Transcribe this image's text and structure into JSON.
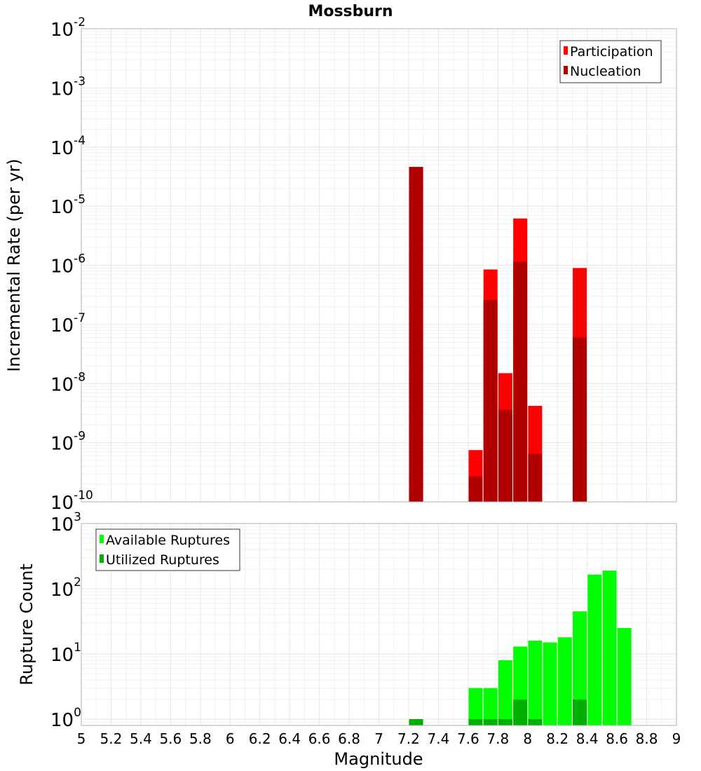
{
  "title": "Mossburn",
  "chart_data": [
    {
      "type": "bar",
      "panel": "top",
      "title": "Mossburn",
      "xlabel": "",
      "ylabel": "Incremental Rate (per yr)",
      "yscale": "log",
      "ylim": [
        1e-10,
        0.01
      ],
      "xlim": [
        5,
        9
      ],
      "grid": true,
      "legend_position": "top-right",
      "legend": [
        "Participation",
        "Nucleation"
      ],
      "y_ticks": [
        {
          "base": "10",
          "exp": "-2",
          "value": 0.01
        },
        {
          "base": "10",
          "exp": "-3",
          "value": 0.001
        },
        {
          "base": "10",
          "exp": "-4",
          "value": 0.0001
        },
        {
          "base": "10",
          "exp": "-5",
          "value": 1e-05
        },
        {
          "base": "10",
          "exp": "-6",
          "value": 1e-06
        },
        {
          "base": "10",
          "exp": "-7",
          "value": 1e-07
        },
        {
          "base": "10",
          "exp": "-8",
          "value": 1e-08
        },
        {
          "base": "10",
          "exp": "-9",
          "value": 1e-09
        },
        {
          "base": "10",
          "exp": "-10",
          "value": 1e-10
        }
      ],
      "series": [
        {
          "name": "Participation",
          "color": "#ff0000",
          "points": [
            {
              "x": 7.25,
              "y": 4.6e-05
            },
            {
              "x": 7.65,
              "y": 7.5e-10
            },
            {
              "x": 7.75,
              "y": 8.5e-07
            },
            {
              "x": 7.85,
              "y": 1.5e-08
            },
            {
              "x": 7.95,
              "y": 6.2e-06
            },
            {
              "x": 8.05,
              "y": 4.2e-09
            },
            {
              "x": 8.35,
              "y": 9e-07
            }
          ]
        },
        {
          "name": "Nucleation",
          "color": "#b00000",
          "points": [
            {
              "x": 7.25,
              "y": 4.6e-05
            },
            {
              "x": 7.65,
              "y": 2.7e-10
            },
            {
              "x": 7.75,
              "y": 2.6e-07
            },
            {
              "x": 7.85,
              "y": 3.6e-09
            },
            {
              "x": 7.95,
              "y": 1.15e-06
            },
            {
              "x": 8.05,
              "y": 6.5e-10
            },
            {
              "x": 8.35,
              "y": 6e-08
            }
          ]
        }
      ]
    },
    {
      "type": "bar",
      "panel": "bottom",
      "xlabel": "Magnitude",
      "ylabel": "Rupture Count",
      "yscale": "log",
      "ylim": [
        0.8,
        1000
      ],
      "xlim": [
        5,
        9
      ],
      "grid": true,
      "legend_position": "top-left",
      "legend": [
        "Available Ruptures",
        "Utilized Ruptures"
      ],
      "x_ticks": [
        "5",
        "5.2",
        "5.4",
        "5.6",
        "5.8",
        "6",
        "6.2",
        "6.4",
        "6.6",
        "6.8",
        "7",
        "7.2",
        "7.4",
        "7.6",
        "7.8",
        "8",
        "8.2",
        "8.4",
        "8.6",
        "8.8",
        "9"
      ],
      "y_ticks": [
        {
          "base": "10",
          "exp": "3",
          "value": 1000
        },
        {
          "base": "10",
          "exp": "2",
          "value": 100
        },
        {
          "base": "10",
          "exp": "1",
          "value": 10
        },
        {
          "base": "10",
          "exp": "0",
          "value": 1
        }
      ],
      "series": [
        {
          "name": "Available Ruptures",
          "color": "#00ff00",
          "points": [
            {
              "x": 7.25,
              "y": 1
            },
            {
              "x": 7.65,
              "y": 3
            },
            {
              "x": 7.75,
              "y": 3
            },
            {
              "x": 7.85,
              "y": 8
            },
            {
              "x": 7.95,
              "y": 13
            },
            {
              "x": 8.05,
              "y": 16
            },
            {
              "x": 8.15,
              "y": 15
            },
            {
              "x": 8.25,
              "y": 18
            },
            {
              "x": 8.35,
              "y": 45
            },
            {
              "x": 8.45,
              "y": 165
            },
            {
              "x": 8.55,
              "y": 190
            },
            {
              "x": 8.65,
              "y": 25
            }
          ]
        },
        {
          "name": "Utilized Ruptures",
          "color": "#00b000",
          "points": [
            {
              "x": 7.25,
              "y": 1
            },
            {
              "x": 7.65,
              "y": 1
            },
            {
              "x": 7.75,
              "y": 1
            },
            {
              "x": 7.85,
              "y": 1
            },
            {
              "x": 7.95,
              "y": 2
            },
            {
              "x": 8.05,
              "y": 1
            },
            {
              "x": 8.35,
              "y": 2
            }
          ]
        }
      ]
    }
  ]
}
